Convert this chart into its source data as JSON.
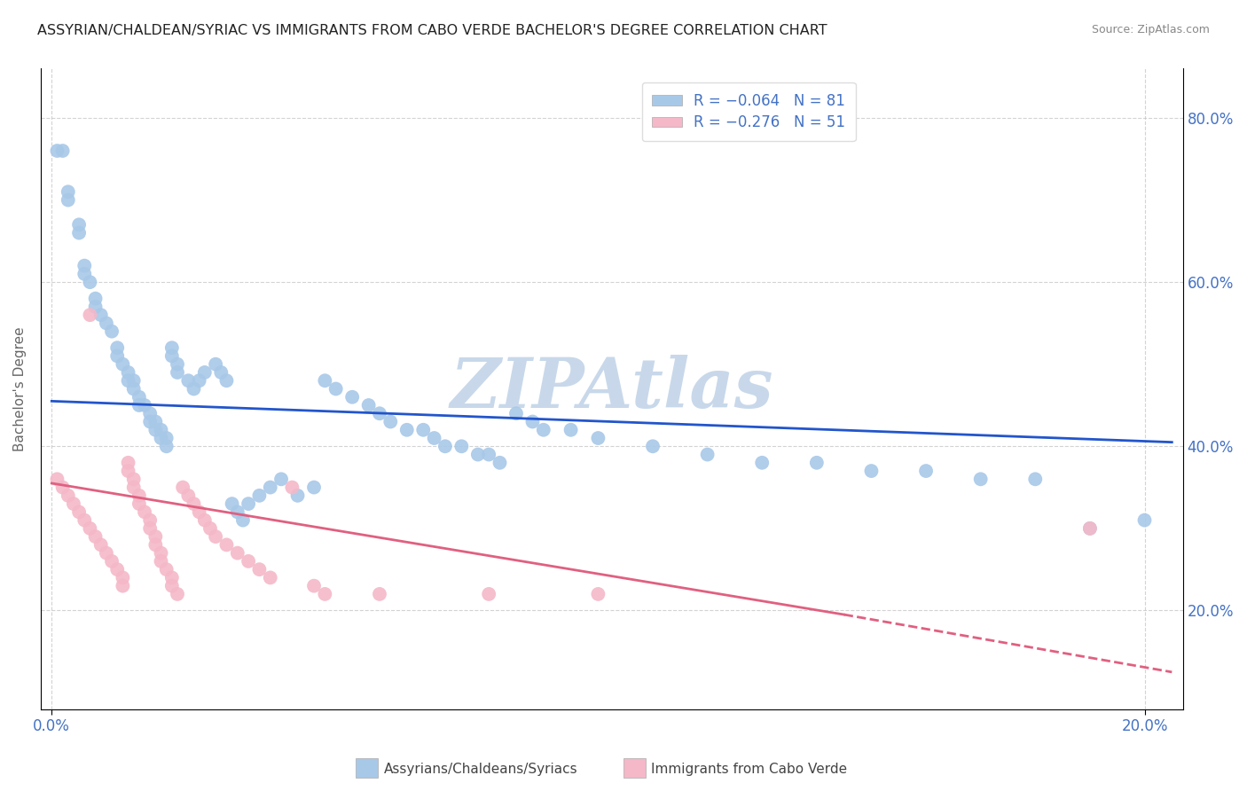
{
  "title": "ASSYRIAN/CHALDEAN/SYRIAC VS IMMIGRANTS FROM CABO VERDE BACHELOR'S DEGREE CORRELATION CHART",
  "source": "Source: ZipAtlas.com",
  "ylabel": "Bachelor's Degree",
  "right_ytick_vals": [
    0.8,
    0.6,
    0.4,
    0.2
  ],
  "right_ytick_labels": [
    "80.0%",
    "60.0%",
    "40.0%",
    "20.0%"
  ],
  "xtick_vals": [
    0.0,
    0.2
  ],
  "xtick_labels": [
    "0.0%",
    "20.0%"
  ],
  "legend": {
    "blue_R": "R = −0.064",
    "blue_N": "N = 81",
    "pink_R": "R = −0.276",
    "pink_N": "N = 51"
  },
  "legend_labels": [
    "Assyrians/Chaldeans/Syriacs",
    "Immigrants from Cabo Verde"
  ],
  "blue_color": "#a8c8e8",
  "pink_color": "#f4b8c8",
  "blue_line_color": "#2255cc",
  "pink_line_color": "#e06080",
  "watermark": "ZIPAtlas",
  "watermark_color": "#c8d8ea",
  "blue_scatter": [
    [
      0.001,
      0.76
    ],
    [
      0.002,
      0.76
    ],
    [
      0.003,
      0.71
    ],
    [
      0.003,
      0.7
    ],
    [
      0.005,
      0.67
    ],
    [
      0.005,
      0.66
    ],
    [
      0.006,
      0.62
    ],
    [
      0.006,
      0.61
    ],
    [
      0.007,
      0.6
    ],
    [
      0.008,
      0.58
    ],
    [
      0.008,
      0.57
    ],
    [
      0.009,
      0.56
    ],
    [
      0.01,
      0.55
    ],
    [
      0.011,
      0.54
    ],
    [
      0.012,
      0.52
    ],
    [
      0.012,
      0.51
    ],
    [
      0.013,
      0.5
    ],
    [
      0.014,
      0.49
    ],
    [
      0.014,
      0.48
    ],
    [
      0.015,
      0.48
    ],
    [
      0.015,
      0.47
    ],
    [
      0.016,
      0.46
    ],
    [
      0.016,
      0.45
    ],
    [
      0.017,
      0.45
    ],
    [
      0.018,
      0.44
    ],
    [
      0.018,
      0.43
    ],
    [
      0.019,
      0.43
    ],
    [
      0.019,
      0.42
    ],
    [
      0.02,
      0.42
    ],
    [
      0.02,
      0.41
    ],
    [
      0.021,
      0.41
    ],
    [
      0.021,
      0.4
    ],
    [
      0.022,
      0.52
    ],
    [
      0.022,
      0.51
    ],
    [
      0.023,
      0.5
    ],
    [
      0.023,
      0.49
    ],
    [
      0.025,
      0.48
    ],
    [
      0.026,
      0.47
    ],
    [
      0.027,
      0.48
    ],
    [
      0.028,
      0.49
    ],
    [
      0.03,
      0.5
    ],
    [
      0.031,
      0.49
    ],
    [
      0.032,
      0.48
    ],
    [
      0.033,
      0.33
    ],
    [
      0.034,
      0.32
    ],
    [
      0.035,
      0.31
    ],
    [
      0.036,
      0.33
    ],
    [
      0.038,
      0.34
    ],
    [
      0.04,
      0.35
    ],
    [
      0.042,
      0.36
    ],
    [
      0.045,
      0.34
    ],
    [
      0.048,
      0.35
    ],
    [
      0.05,
      0.48
    ],
    [
      0.052,
      0.47
    ],
    [
      0.055,
      0.46
    ],
    [
      0.058,
      0.45
    ],
    [
      0.06,
      0.44
    ],
    [
      0.062,
      0.43
    ],
    [
      0.065,
      0.42
    ],
    [
      0.068,
      0.42
    ],
    [
      0.07,
      0.41
    ],
    [
      0.072,
      0.4
    ],
    [
      0.075,
      0.4
    ],
    [
      0.078,
      0.39
    ],
    [
      0.08,
      0.39
    ],
    [
      0.082,
      0.38
    ],
    [
      0.085,
      0.44
    ],
    [
      0.088,
      0.43
    ],
    [
      0.09,
      0.42
    ],
    [
      0.095,
      0.42
    ],
    [
      0.1,
      0.41
    ],
    [
      0.11,
      0.4
    ],
    [
      0.12,
      0.39
    ],
    [
      0.13,
      0.38
    ],
    [
      0.14,
      0.38
    ],
    [
      0.15,
      0.37
    ],
    [
      0.16,
      0.37
    ],
    [
      0.17,
      0.36
    ],
    [
      0.18,
      0.36
    ],
    [
      0.19,
      0.3
    ],
    [
      0.2,
      0.31
    ]
  ],
  "pink_scatter": [
    [
      0.001,
      0.36
    ],
    [
      0.002,
      0.35
    ],
    [
      0.003,
      0.34
    ],
    [
      0.004,
      0.33
    ],
    [
      0.005,
      0.32
    ],
    [
      0.006,
      0.31
    ],
    [
      0.007,
      0.3
    ],
    [
      0.007,
      0.56
    ],
    [
      0.008,
      0.29
    ],
    [
      0.009,
      0.28
    ],
    [
      0.01,
      0.27
    ],
    [
      0.011,
      0.26
    ],
    [
      0.012,
      0.25
    ],
    [
      0.013,
      0.24
    ],
    [
      0.013,
      0.23
    ],
    [
      0.014,
      0.38
    ],
    [
      0.014,
      0.37
    ],
    [
      0.015,
      0.36
    ],
    [
      0.015,
      0.35
    ],
    [
      0.016,
      0.34
    ],
    [
      0.016,
      0.33
    ],
    [
      0.017,
      0.32
    ],
    [
      0.018,
      0.31
    ],
    [
      0.018,
      0.3
    ],
    [
      0.019,
      0.29
    ],
    [
      0.019,
      0.28
    ],
    [
      0.02,
      0.27
    ],
    [
      0.02,
      0.26
    ],
    [
      0.021,
      0.25
    ],
    [
      0.022,
      0.24
    ],
    [
      0.022,
      0.23
    ],
    [
      0.023,
      0.22
    ],
    [
      0.024,
      0.35
    ],
    [
      0.025,
      0.34
    ],
    [
      0.026,
      0.33
    ],
    [
      0.027,
      0.32
    ],
    [
      0.028,
      0.31
    ],
    [
      0.029,
      0.3
    ],
    [
      0.03,
      0.29
    ],
    [
      0.032,
      0.28
    ],
    [
      0.034,
      0.27
    ],
    [
      0.036,
      0.26
    ],
    [
      0.038,
      0.25
    ],
    [
      0.04,
      0.24
    ],
    [
      0.044,
      0.35
    ],
    [
      0.048,
      0.23
    ],
    [
      0.05,
      0.22
    ],
    [
      0.06,
      0.22
    ],
    [
      0.08,
      0.22
    ],
    [
      0.1,
      0.22
    ],
    [
      0.19,
      0.3
    ]
  ],
  "blue_line": {
    "x0": 0.0,
    "y0": 0.455,
    "x1": 0.205,
    "y1": 0.405
  },
  "pink_line_solid": {
    "x0": 0.0,
    "y0": 0.355,
    "x1": 0.145,
    "y1": 0.195
  },
  "pink_line_dashed": {
    "x0": 0.145,
    "y0": 0.195,
    "x1": 0.205,
    "y1": 0.125
  },
  "xlim": [
    -0.002,
    0.207
  ],
  "ylim": [
    0.08,
    0.86
  ],
  "background_color": "#ffffff",
  "grid_color": "#c8c8c8",
  "title_fontsize": 11.5,
  "source_fontsize": 9,
  "axis_label_color": "#4472c4",
  "legend_text_color": "#4472c4",
  "ylabel_color": "#666666"
}
